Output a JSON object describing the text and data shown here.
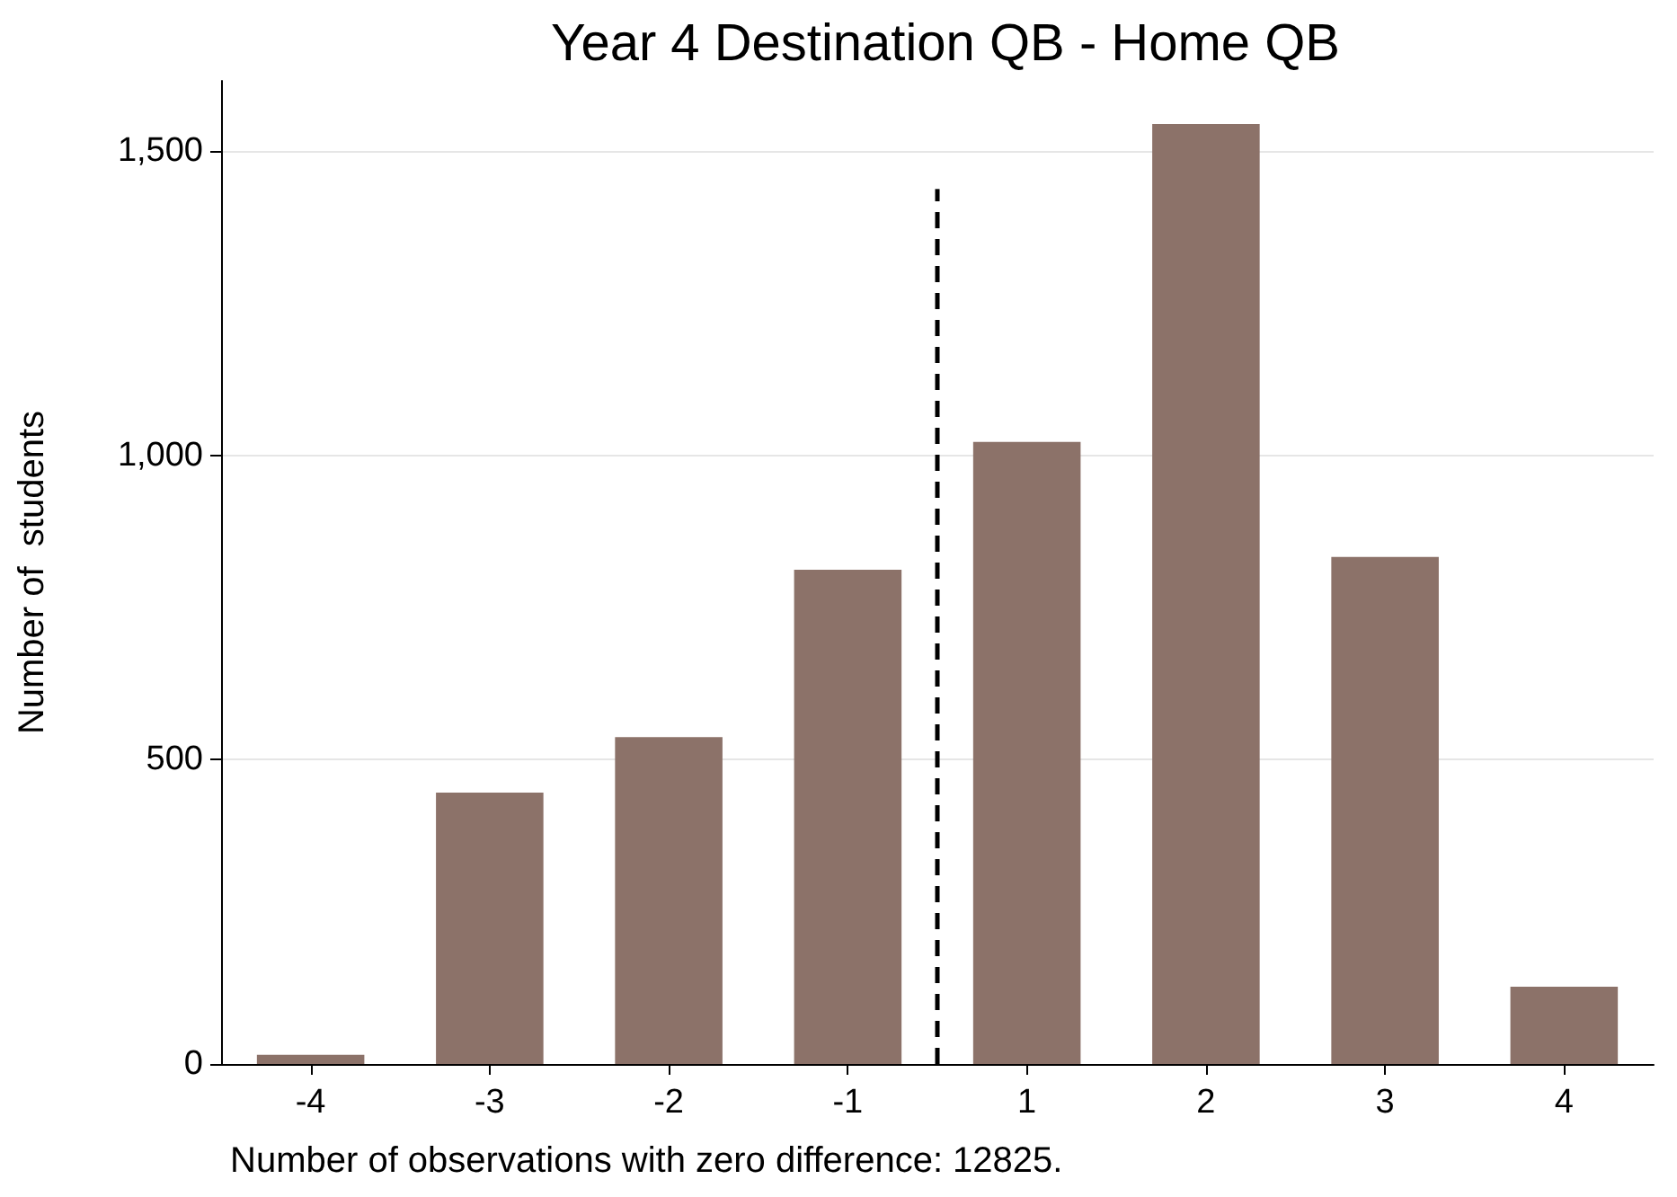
{
  "chart_data": {
    "type": "bar",
    "title": "Year 4 Destination QB - Home QB",
    "ylabel": "Number of  students",
    "categories": [
      "-4",
      "-3",
      "-2",
      "-1",
      "1",
      "2",
      "3",
      "4"
    ],
    "values": [
      15,
      446,
      537,
      812,
      1022,
      1544,
      833,
      127
    ],
    "color": "#8c7269",
    "ylim": [
      0,
      1615
    ],
    "yticks": [
      0,
      {
        "value": 500,
        "label": "500"
      },
      {
        "value": 1000,
        "label": "1,000"
      },
      {
        "value": 1500,
        "label": "1,500"
      }
    ],
    "grid": "y",
    "annotations": [
      "Number of observations with zero difference: 12825."
    ]
  }
}
